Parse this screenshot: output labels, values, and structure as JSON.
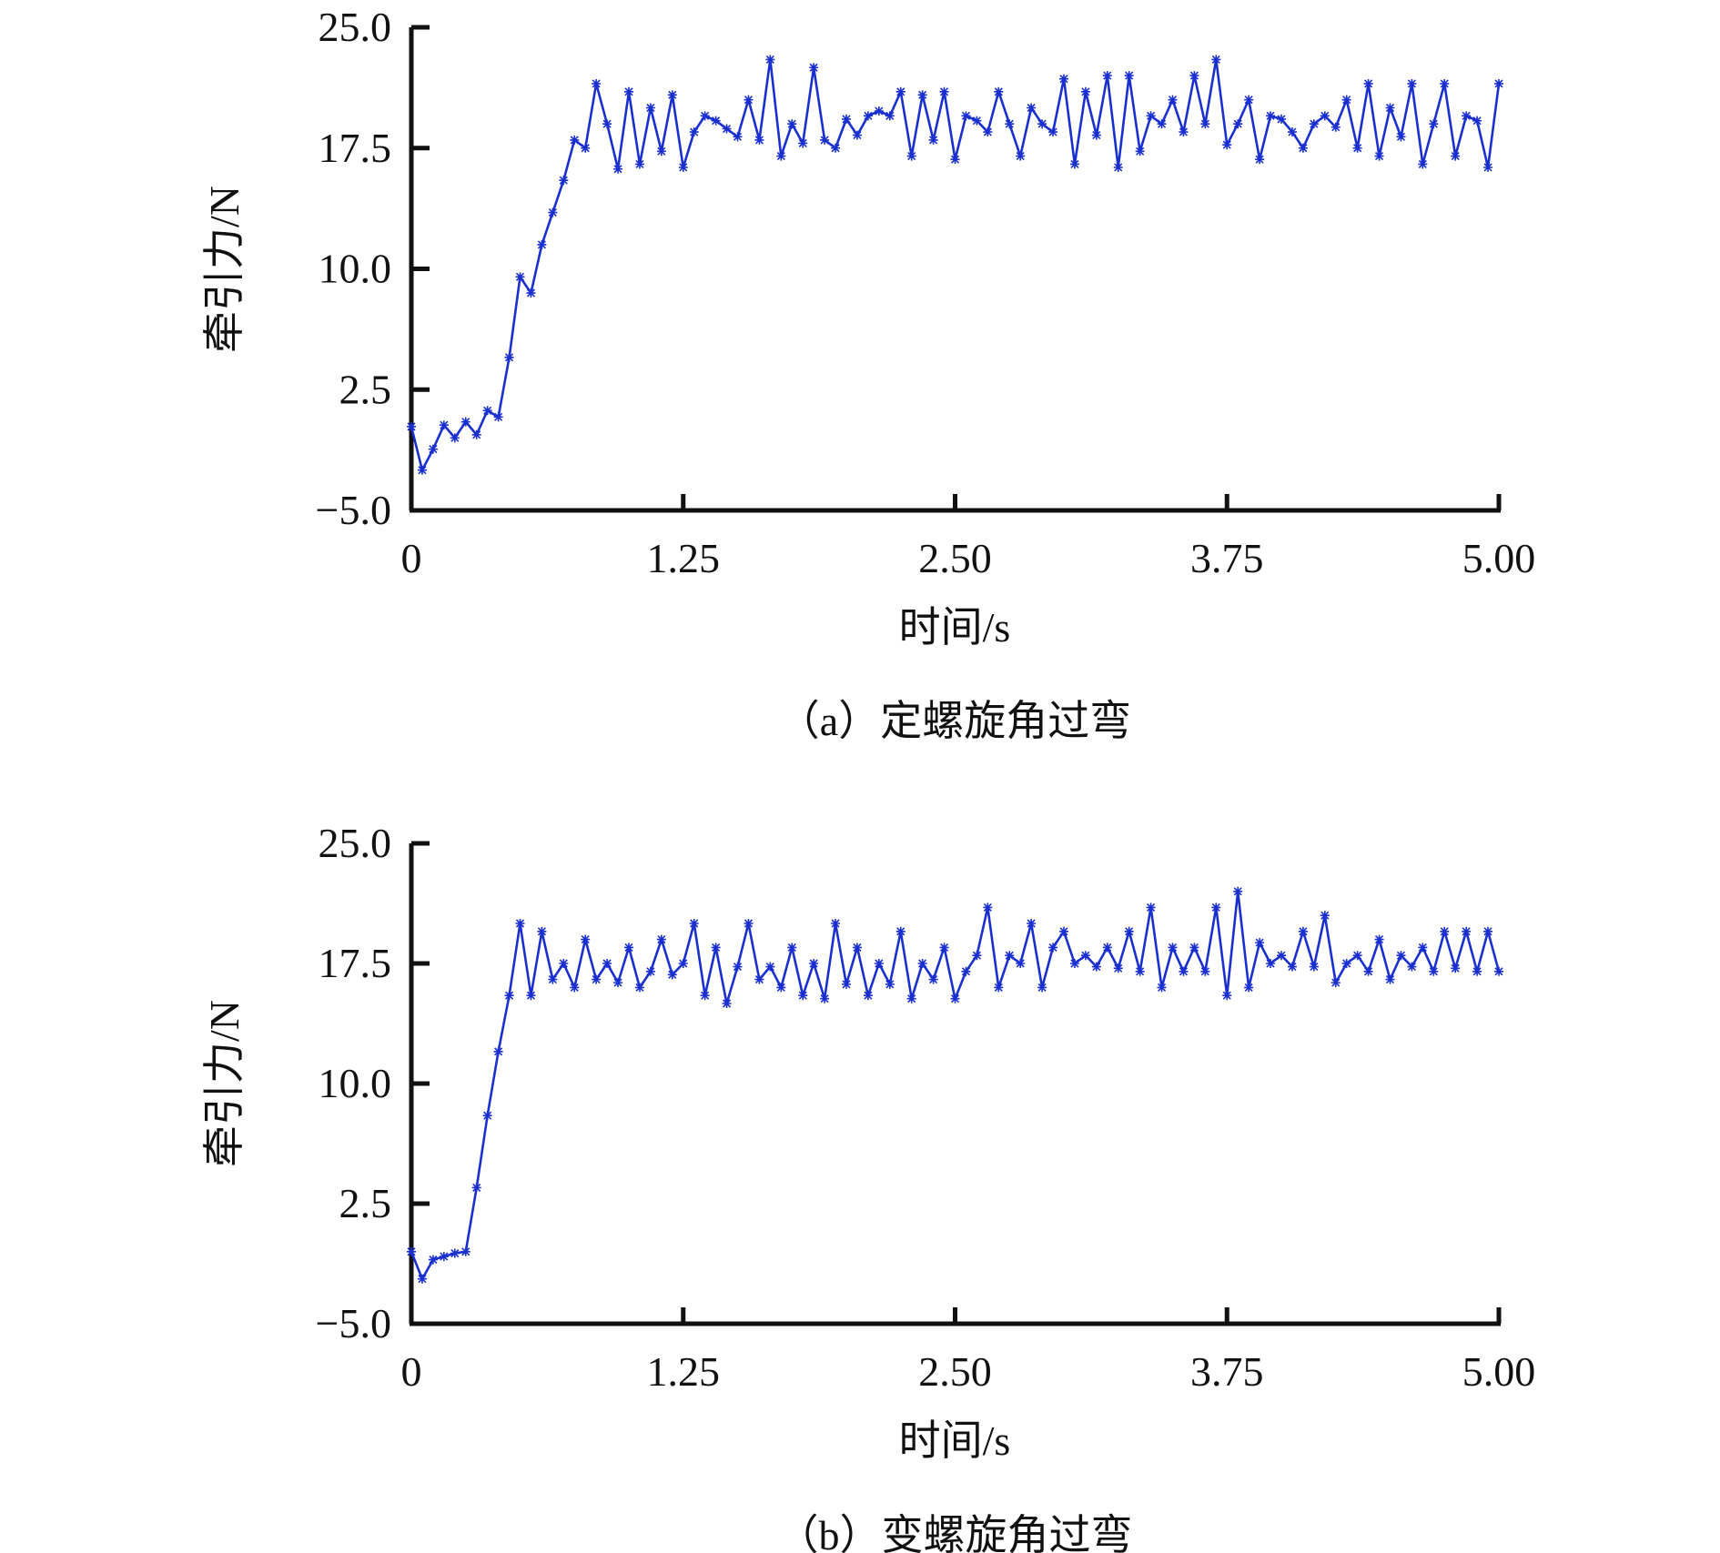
{
  "chart_data": [
    {
      "type": "line",
      "caption": "（a）定螺旋角过弯",
      "xlabel": "时间/s",
      "ylabel": "牵引力/N",
      "xlim": [
        0,
        5
      ],
      "ylim": [
        -5,
        25
      ],
      "xticks": [
        "0",
        "1.25",
        "2.50",
        "3.75",
        "5.00"
      ],
      "xtick_values": [
        0,
        1.25,
        2.5,
        3.75,
        5
      ],
      "yticks": [
        "−5.0",
        "2.5",
        "10.0",
        "17.5",
        "25.0"
      ],
      "ytick_values": [
        -5,
        2.5,
        10,
        17.5,
        25
      ],
      "grid": false,
      "color": "#1a2fd0",
      "x_step": 0.05,
      "values": [
        0.2,
        -2.5,
        -1.2,
        0.3,
        -0.5,
        0.5,
        -0.3,
        1.2,
        0.8,
        4.5,
        9.5,
        8.5,
        11.5,
        13.5,
        15.5,
        18,
        17.5,
        21.5,
        19,
        16.2,
        21,
        16.5,
        20,
        17.3,
        20.8,
        16.3,
        18.5,
        19.5,
        19.2,
        18.7,
        18.2,
        20.5,
        18,
        23,
        17,
        19,
        17.8,
        22.5,
        18,
        17.5,
        19.3,
        18.3,
        19.5,
        19.8,
        19.5,
        21,
        17,
        20.8,
        18,
        21,
        16.8,
        19.5,
        19.2,
        18.5,
        21,
        19,
        17,
        20,
        19,
        18.5,
        21.8,
        16.5,
        21,
        18.3,
        22,
        16.3,
        22,
        17.3,
        19.5,
        19,
        20.5,
        18.5,
        22,
        19,
        23,
        17.7,
        19,
        20.5,
        16.8,
        19.5,
        19.3,
        18.5,
        17.5,
        19,
        19.5,
        18.8,
        20.5,
        17.5,
        21.5,
        17,
        20,
        18.2,
        21.5,
        16.5,
        19,
        21.5,
        17,
        19.5,
        19.2,
        16.3,
        21.5
      ]
    },
    {
      "type": "line",
      "caption": "（b）变螺旋角过弯",
      "xlabel": "时间/s",
      "ylabel": "牵引力/N",
      "xlim": [
        0,
        5
      ],
      "ylim": [
        -5,
        25
      ],
      "xticks": [
        "0",
        "1.25",
        "2.50",
        "3.75",
        "5.00"
      ],
      "xtick_values": [
        0,
        1.25,
        2.5,
        3.75,
        5
      ],
      "yticks": [
        "−5.0",
        "2.5",
        "10.0",
        "17.5",
        "25.0"
      ],
      "ytick_values": [
        -5,
        2.5,
        10,
        17.5,
        25
      ],
      "grid": false,
      "color": "#1a2fd0",
      "x_step": 0.05,
      "values": [
        -0.5,
        -2.2,
        -1,
        -0.8,
        -0.6,
        -0.5,
        3.5,
        8,
        12,
        15.5,
        20,
        15.5,
        19.5,
        16.5,
        17.5,
        16,
        19,
        16.5,
        17.5,
        16.3,
        18.5,
        16,
        17,
        19,
        16.8,
        17.5,
        20,
        15.5,
        18.5,
        15,
        17.3,
        20,
        16.5,
        17.3,
        16,
        18.5,
        15.5,
        17.5,
        15.3,
        20,
        16.2,
        18.5,
        15.5,
        17.5,
        16.2,
        19.5,
        15.3,
        17.5,
        16.5,
        18.5,
        15.3,
        17,
        18,
        21,
        16,
        18,
        17.5,
        20,
        16,
        18.5,
        19.5,
        17.5,
        18,
        17.3,
        18.5,
        17.2,
        19.5,
        17,
        21,
        16,
        18.5,
        17,
        18.5,
        17,
        21,
        15.5,
        22,
        16,
        18.8,
        17.5,
        18,
        17.3,
        19.5,
        17.3,
        20.5,
        16.3,
        17.5,
        18,
        17,
        19,
        16.5,
        18,
        17.3,
        18.5,
        17,
        19.5,
        17.2,
        19.5,
        17,
        19.5,
        17
      ]
    }
  ]
}
